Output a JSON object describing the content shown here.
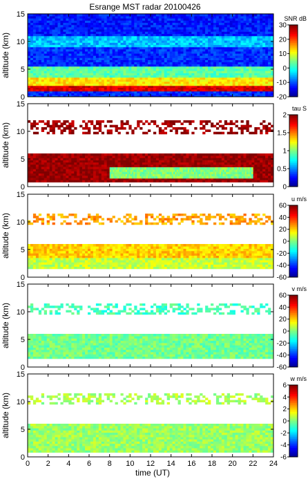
{
  "title": "Esrange MST radar 20100426",
  "xlabel": "time (UT)",
  "chart_data": [
    {
      "type": "heatmap",
      "ylabel": "altitude (km)",
      "colorbar_label": "SNR dB",
      "colorbar_ticks": [
        "30",
        "20",
        "10",
        "0",
        "-10",
        "-20"
      ],
      "clim": [
        -20,
        30
      ],
      "x_ticks": [
        "0",
        "2",
        "4",
        "6",
        "8",
        "10",
        "12",
        "14",
        "16",
        "18",
        "20",
        "22",
        "24"
      ],
      "xlim": [
        0,
        24
      ],
      "y_ticks": [
        "15",
        "10",
        "5",
        "0"
      ],
      "ylim": [
        0,
        15
      ],
      "bands": [
        {
          "z0": 0,
          "z1": 1,
          "value": -12
        },
        {
          "z0": 1,
          "z1": 2,
          "value": 25
        },
        {
          "z0": 2,
          "z1": 3.5,
          "value": 12
        },
        {
          "z0": 3.5,
          "z1": 5.5,
          "value": 3
        },
        {
          "z0": 5.5,
          "z1": 9,
          "value": -12
        },
        {
          "z0": 9,
          "z1": 11,
          "value": -5
        },
        {
          "z0": 11,
          "z1": 15,
          "value": -13
        }
      ]
    },
    {
      "type": "heatmap",
      "ylabel": "altitude (km)",
      "colorbar_label": "tau S",
      "colorbar_ticks": [
        "2",
        "1.5",
        "1",
        "0.5",
        "0"
      ],
      "clim": [
        0,
        2
      ],
      "x_ticks": [
        "0",
        "2",
        "4",
        "6",
        "8",
        "10",
        "12",
        "14",
        "16",
        "18",
        "20",
        "22",
        "24"
      ],
      "xlim": [
        0,
        24
      ],
      "y_ticks": [
        "15",
        "10",
        "5",
        "0"
      ],
      "ylim": [
        0,
        15
      ],
      "bands": [
        {
          "z0": 0.8,
          "z1": 6,
          "value": 1.95
        },
        {
          "z0": 1.5,
          "z1": 3.5,
          "value": 1.0,
          "x0": 8,
          "x1": 22
        },
        {
          "z0": 9.5,
          "z1": 12,
          "value": 1.95,
          "sparse": true
        }
      ]
    },
    {
      "type": "heatmap",
      "ylabel": "altitude (km)",
      "colorbar_label": "u m/s",
      "colorbar_ticks": [
        "60",
        "40",
        "20",
        "0",
        "-20",
        "-40",
        "-60"
      ],
      "clim": [
        -60,
        60
      ],
      "x_ticks": [
        "0",
        "2",
        "4",
        "6",
        "8",
        "10",
        "12",
        "14",
        "16",
        "18",
        "20",
        "22",
        "24"
      ],
      "xlim": [
        0,
        24
      ],
      "y_ticks": [
        "15",
        "10",
        "5",
        "0"
      ],
      "ylim": [
        0,
        15
      ],
      "bands": [
        {
          "z0": 1.5,
          "z1": 3.5,
          "value": 8
        },
        {
          "z0": 3.5,
          "z1": 6,
          "value": 20
        },
        {
          "z0": 9.5,
          "z1": 11.5,
          "value": 25,
          "sparse": true
        }
      ]
    },
    {
      "type": "heatmap",
      "ylabel": "altitude (km)",
      "colorbar_label": "v m/s",
      "colorbar_ticks": [
        "60",
        "40",
        "20",
        "0",
        "-20",
        "-40",
        "-60"
      ],
      "clim": [
        -60,
        60
      ],
      "x_ticks": [
        "0",
        "2",
        "4",
        "6",
        "8",
        "10",
        "12",
        "14",
        "16",
        "18",
        "20",
        "22",
        "24"
      ],
      "xlim": [
        0,
        24
      ],
      "y_ticks": [
        "15",
        "10",
        "5",
        "0"
      ],
      "ylim": [
        0,
        15
      ],
      "bands": [
        {
          "z0": 1.5,
          "z1": 6,
          "value": -2
        },
        {
          "z0": 9.5,
          "z1": 11.5,
          "value": -8,
          "sparse": true
        }
      ]
    },
    {
      "type": "heatmap",
      "ylabel": "altitude (km)",
      "colorbar_label": "w m/s",
      "colorbar_ticks": [
        "6",
        "4",
        "2",
        "0",
        "-2",
        "-4",
        "-6"
      ],
      "clim": [
        -6,
        6
      ],
      "x_ticks": [
        "0",
        "2",
        "4",
        "6",
        "8",
        "10",
        "12",
        "14",
        "16",
        "18",
        "20",
        "22",
        "24"
      ],
      "xlim": [
        0,
        24
      ],
      "y_ticks": [
        "15",
        "10",
        "5",
        "0"
      ],
      "ylim": [
        0,
        15
      ],
      "bands": [
        {
          "z0": 0.8,
          "z1": 6,
          "value": 0.3
        },
        {
          "z0": 9.5,
          "z1": 11.5,
          "value": 0.5,
          "sparse": true
        }
      ]
    }
  ]
}
